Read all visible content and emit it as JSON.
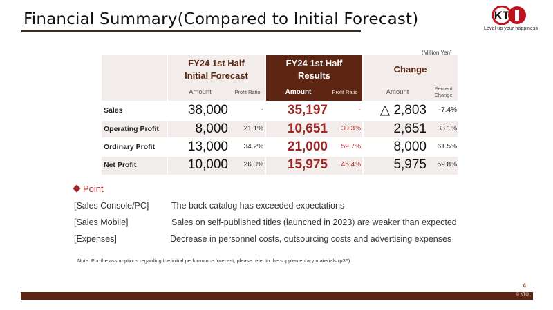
{
  "header": {
    "title": "Financial Summary(Compared to Initial Forecast)",
    "logo_text": "KT",
    "tagline": "Level up your happiness"
  },
  "unit_note": "(Million Yen)",
  "table": {
    "columns": {
      "forecast": {
        "title_line1": "FY24 1st Half",
        "title_line2": "Initial Forecast",
        "sub_amount": "Amount",
        "sub_ratio": "Profit Ratio"
      },
      "results": {
        "title_line1": "FY24 1st Half",
        "title_line2": "Results",
        "sub_amount": "Amount",
        "sub_ratio": "Profit Ratio"
      },
      "change": {
        "title": "Change",
        "sub_amount": "Amount",
        "sub_pct_line1": "Percent",
        "sub_pct_line2": "Change"
      }
    },
    "rows": [
      {
        "label": "Sales",
        "forecast_amount": "38,000",
        "forecast_ratio": "-",
        "results_amount": "35,197",
        "results_ratio": "-",
        "change_amount": "△ 2,803",
        "change_pct": "-7.4%"
      },
      {
        "label": "Operating Profit",
        "forecast_amount": "8,000",
        "forecast_ratio": "21.1%",
        "results_amount": "10,651",
        "results_ratio": "30.3%",
        "change_amount": "2,651",
        "change_pct": "33.1%"
      },
      {
        "label": "Ordinary Profit",
        "forecast_amount": "13,000",
        "forecast_ratio": "34.2%",
        "results_amount": "21,000",
        "results_ratio": "59.7%",
        "change_amount": "8,000",
        "change_pct": "61.5%"
      },
      {
        "label": "Net Profit",
        "forecast_amount": "10,000",
        "forecast_ratio": "26.3%",
        "results_amount": "15,975",
        "results_ratio": "45.4%",
        "change_amount": "5,975",
        "change_pct": "59.8%"
      }
    ]
  },
  "point": {
    "title": "Point",
    "items": [
      {
        "label": "[Sales Console/PC]",
        "text": "The back catalog has exceeded expectations"
      },
      {
        "label": "[Sales Mobile]",
        "text": "Sales on self-published titles (launched in 2023) are weaker than expected"
      },
      {
        "label": "[Expenses]",
        "text": "Decrease in personnel costs, outsourcing costs and advertising expenses"
      }
    ]
  },
  "footnote": "Note: For the assumptions regarding the initial performance forecast, please refer to the supplementary materials (p36)",
  "page_number": "4",
  "copyright": "© KTG",
  "colors": {
    "accent": "#5d2613",
    "red_value": "#9e2626",
    "shade": "#f2ecea"
  }
}
